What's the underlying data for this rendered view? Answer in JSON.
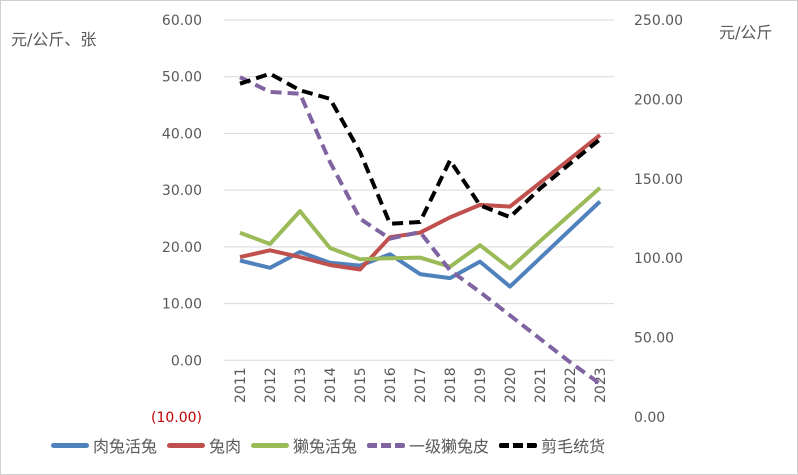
{
  "chart_data": {
    "type": "line",
    "categories": [
      "2011",
      "2012",
      "2013",
      "2014",
      "2015",
      "2016",
      "2017",
      "2018",
      "2019",
      "2020",
      "2021",
      "2022",
      "2023"
    ],
    "left_axis": {
      "label": "元/公斤、张",
      "ylim": [
        -10,
        60
      ],
      "ticks": [
        "(10.00)",
        "0.00",
        "10.00",
        "20.00",
        "30.00",
        "40.00",
        "50.00",
        "60.00"
      ],
      "tick_values": [
        -10,
        0,
        10,
        20,
        30,
        40,
        50,
        60
      ],
      "negative_color": "#c00000"
    },
    "right_axis": {
      "label": "元/公斤",
      "ylim": [
        0,
        250
      ],
      "ticks": [
        "0.00",
        "50.00",
        "100.00",
        "150.00",
        "200.00",
        "250.00"
      ],
      "tick_values": [
        0,
        50,
        100,
        150,
        200,
        250
      ]
    },
    "grid": true,
    "legend": "bottom",
    "series": [
      {
        "name": "肉兔活兔",
        "axis": "left",
        "color": "#4f81bd",
        "style": "solid",
        "values": [
          17.6,
          16.3,
          19.1,
          17.2,
          16.7,
          18.7,
          15.2,
          14.5,
          17.4,
          13.0,
          18.0,
          23.0,
          28.0
        ]
      },
      {
        "name": "兔肉",
        "axis": "left",
        "color": "#c0504d",
        "style": "solid",
        "values": [
          18.2,
          19.4,
          18.2,
          16.8,
          16.0,
          21.7,
          22.5,
          25.2,
          27.4,
          27.1,
          31.3,
          35.5,
          39.7
        ]
      },
      {
        "name": "獭兔活兔",
        "axis": "left",
        "color": "#9bbb59",
        "style": "solid",
        "values": [
          22.5,
          20.5,
          26.3,
          19.8,
          17.8,
          18.0,
          18.1,
          16.5,
          20.3,
          16.2,
          21.0,
          25.7,
          30.4
        ]
      },
      {
        "name": "一级獭兔皮",
        "axis": "right",
        "color": "#8064a2",
        "style": "dashed",
        "values": [
          214,
          204.7,
          203.6,
          160.6,
          124.9,
          112.3,
          116.5,
          92.4,
          78.7,
          64,
          49.3,
          34.6,
          21
        ]
      },
      {
        "name": "剪毛统货",
        "axis": "right",
        "color": "#000000",
        "style": "dashed",
        "values": [
          209.9,
          216.2,
          205.7,
          200.4,
          166.9,
          121.7,
          122.8,
          161.6,
          133.3,
          125.9,
          143.8,
          159.5,
          174.9
        ]
      }
    ]
  }
}
